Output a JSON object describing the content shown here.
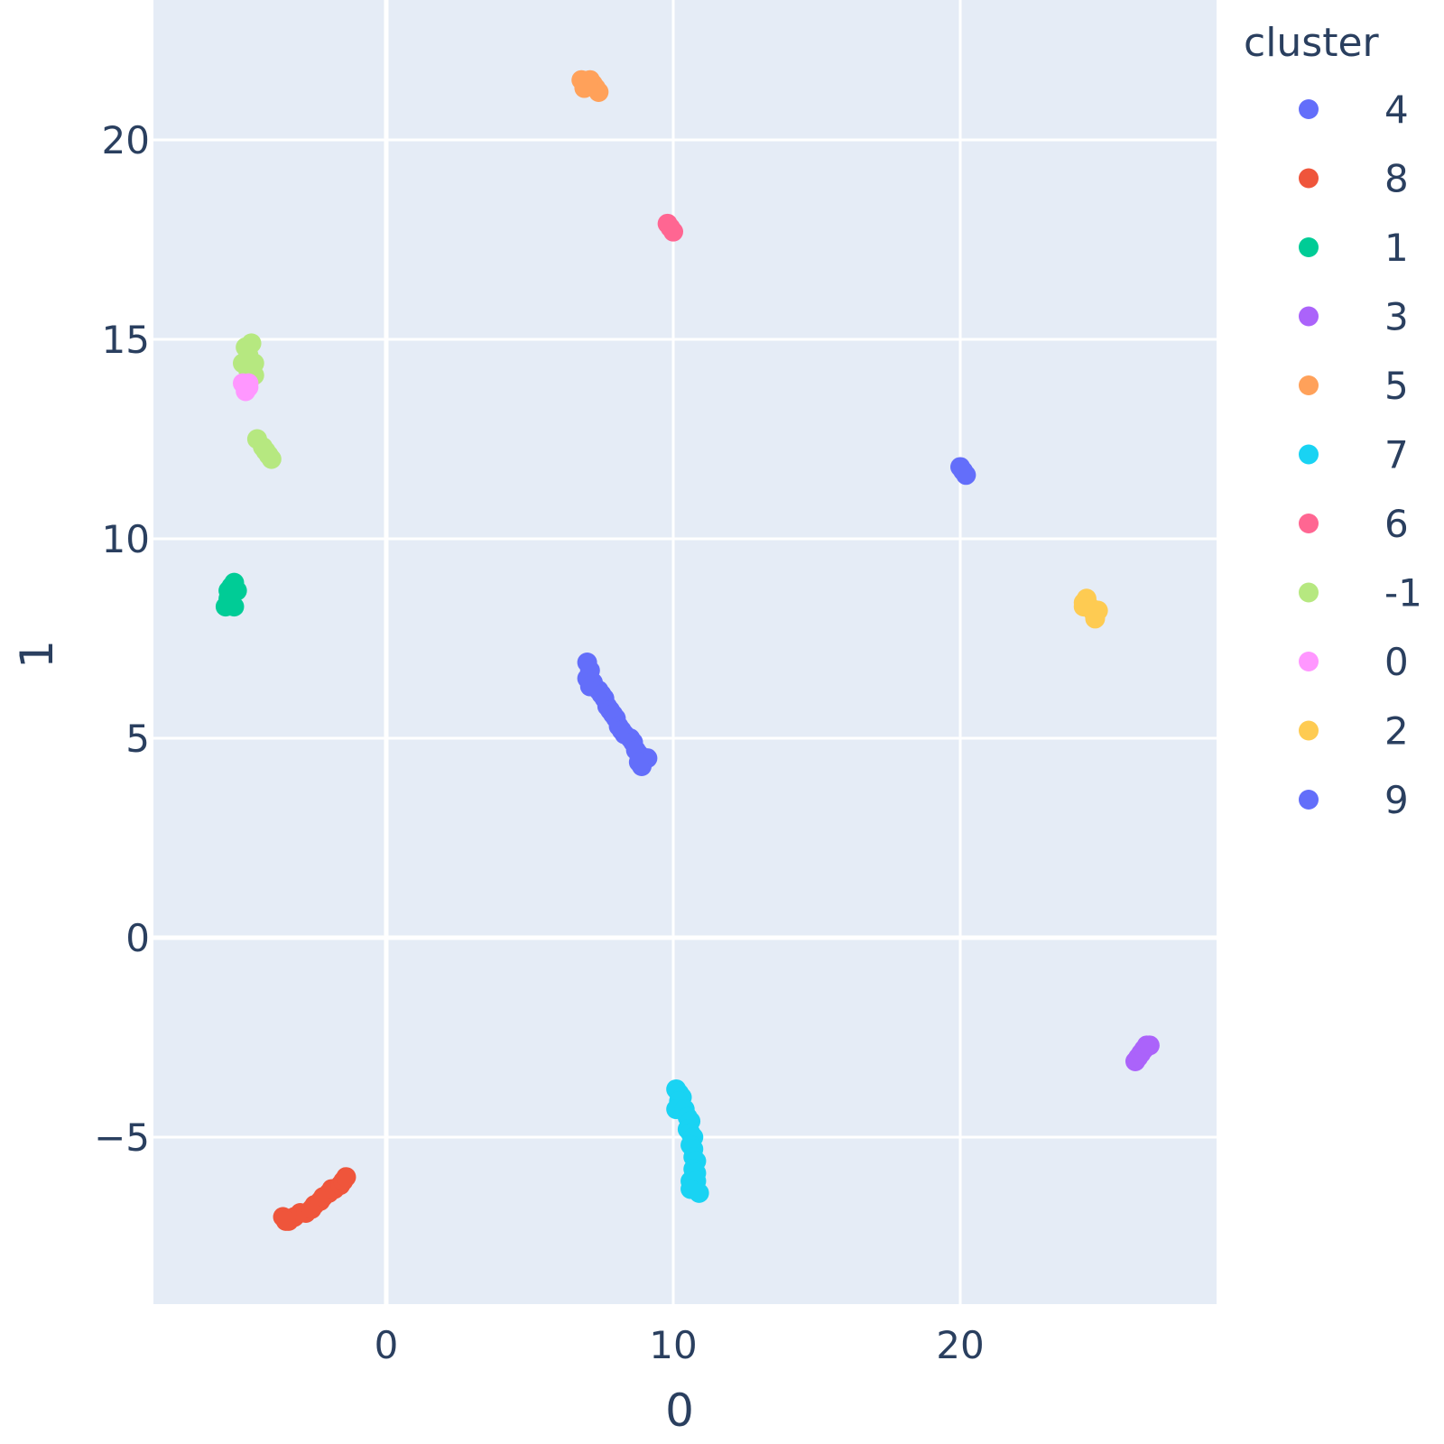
{
  "chart_data": {
    "type": "scatter",
    "xlabel": "0",
    "ylabel": "1",
    "xlim": [
      -8,
      29
    ],
    "ylim": [
      -9,
      23.5
    ],
    "x_ticks": [
      0,
      10,
      20
    ],
    "x_tick_labels": [
      "0",
      "10",
      "20"
    ],
    "y_ticks": [
      -5,
      0,
      5,
      10,
      15,
      20
    ],
    "y_tick_labels": [
      "−5",
      "0",
      "5",
      "10",
      "15",
      "20"
    ],
    "grid": true,
    "plot_background": "#e5ecf6",
    "legend_title": "cluster",
    "legend_position": "right",
    "series": [
      {
        "name": "4",
        "color": "#636efa",
        "points": [
          [
            7.0,
            6.9
          ],
          [
            7.1,
            6.7
          ],
          [
            7.0,
            6.5
          ],
          [
            7.2,
            6.4
          ],
          [
            7.1,
            6.3
          ],
          [
            7.4,
            6.2
          ],
          [
            7.5,
            6.1
          ],
          [
            7.6,
            6.0
          ],
          [
            7.7,
            5.8
          ],
          [
            7.8,
            5.7
          ],
          [
            7.9,
            5.6
          ],
          [
            8.0,
            5.5
          ],
          [
            8.1,
            5.3
          ],
          [
            8.2,
            5.2
          ],
          [
            8.3,
            5.1
          ],
          [
            8.5,
            5.0
          ],
          [
            8.6,
            4.9
          ],
          [
            8.7,
            4.7
          ],
          [
            8.8,
            4.6
          ],
          [
            9.0,
            4.5
          ],
          [
            9.1,
            4.5
          ],
          [
            8.9,
            4.3
          ],
          [
            8.8,
            4.4
          ]
        ]
      },
      {
        "name": "8",
        "color": "#ef553b",
        "points": [
          [
            -3.6,
            -7.0
          ],
          [
            -3.4,
            -7.1
          ],
          [
            -3.2,
            -7.0
          ],
          [
            -3.0,
            -6.9
          ],
          [
            -2.8,
            -6.9
          ],
          [
            -2.6,
            -6.8
          ],
          [
            -2.5,
            -6.7
          ],
          [
            -2.3,
            -6.6
          ],
          [
            -2.2,
            -6.5
          ],
          [
            -2.0,
            -6.4
          ],
          [
            -1.9,
            -6.3
          ],
          [
            -1.8,
            -6.3
          ],
          [
            -1.6,
            -6.2
          ],
          [
            -1.5,
            -6.1
          ],
          [
            -1.4,
            -6.0
          ],
          [
            -3.5,
            -7.1
          ]
        ]
      },
      {
        "name": "1",
        "color": "#00cc96",
        "points": [
          [
            -5.6,
            8.3
          ],
          [
            -5.5,
            8.5
          ],
          [
            -5.5,
            8.7
          ],
          [
            -5.4,
            8.8
          ],
          [
            -5.3,
            8.9
          ],
          [
            -5.2,
            8.7
          ],
          [
            -5.4,
            8.4
          ],
          [
            -5.3,
            8.3
          ]
        ]
      },
      {
        "name": "3",
        "color": "#ab63fa",
        "points": [
          [
            26.1,
            -3.1
          ],
          [
            26.2,
            -3.0
          ],
          [
            26.3,
            -2.9
          ],
          [
            26.4,
            -2.8
          ],
          [
            26.5,
            -2.7
          ],
          [
            26.6,
            -2.7
          ]
        ]
      },
      {
        "name": "5",
        "color": "#ffa15a",
        "points": [
          [
            6.8,
            21.5
          ],
          [
            6.9,
            21.3
          ],
          [
            7.1,
            21.5
          ],
          [
            7.2,
            21.4
          ],
          [
            7.3,
            21.3
          ],
          [
            7.4,
            21.2
          ],
          [
            7.0,
            21.4
          ]
        ]
      },
      {
        "name": "7",
        "color": "#19d3f3",
        "points": [
          [
            10.1,
            -3.8
          ],
          [
            10.2,
            -3.9
          ],
          [
            10.3,
            -4.0
          ],
          [
            10.2,
            -4.1
          ],
          [
            10.1,
            -4.3
          ],
          [
            10.4,
            -4.3
          ],
          [
            10.5,
            -4.5
          ],
          [
            10.6,
            -4.6
          ],
          [
            10.5,
            -4.8
          ],
          [
            10.6,
            -4.9
          ],
          [
            10.7,
            -5.0
          ],
          [
            10.6,
            -5.2
          ],
          [
            10.7,
            -5.3
          ],
          [
            10.7,
            -5.5
          ],
          [
            10.8,
            -5.6
          ],
          [
            10.7,
            -5.8
          ],
          [
            10.8,
            -5.9
          ],
          [
            10.6,
            -6.1
          ],
          [
            10.8,
            -6.1
          ],
          [
            10.6,
            -6.3
          ],
          [
            10.9,
            -6.4
          ]
        ]
      },
      {
        "name": "6",
        "color": "#ff6692",
        "points": [
          [
            9.8,
            17.9
          ],
          [
            9.9,
            17.8
          ],
          [
            10.0,
            17.7
          ]
        ]
      },
      {
        "name": "-1",
        "color": "#b6e880",
        "points": [
          [
            -4.9,
            14.8
          ],
          [
            -4.7,
            14.9
          ],
          [
            -4.8,
            14.6
          ],
          [
            -5.0,
            14.4
          ],
          [
            -4.6,
            14.4
          ],
          [
            -4.8,
            14.2
          ],
          [
            -4.6,
            14.1
          ],
          [
            -4.5,
            12.5
          ],
          [
            -4.3,
            12.3
          ],
          [
            -4.2,
            12.2
          ],
          [
            -4.1,
            12.1
          ],
          [
            -4.0,
            12.0
          ]
        ]
      },
      {
        "name": "0",
        "color": "#ff97ff",
        "points": [
          [
            -5.0,
            13.9
          ],
          [
            -4.9,
            13.8
          ],
          [
            -4.8,
            13.9
          ],
          [
            -4.9,
            13.7
          ],
          [
            -4.8,
            13.8
          ]
        ]
      },
      {
        "name": "2",
        "color": "#fecb52",
        "points": [
          [
            24.3,
            8.4
          ],
          [
            24.4,
            8.5
          ],
          [
            24.3,
            8.3
          ],
          [
            24.5,
            8.3
          ],
          [
            24.6,
            8.2
          ],
          [
            24.7,
            8.1
          ],
          [
            24.8,
            8.2
          ],
          [
            24.7,
            8.0
          ]
        ]
      },
      {
        "name": "9",
        "color": "#636efa",
        "points": [
          [
            20.0,
            11.8
          ],
          [
            20.1,
            11.7
          ],
          [
            20.2,
            11.6
          ]
        ]
      }
    ]
  }
}
